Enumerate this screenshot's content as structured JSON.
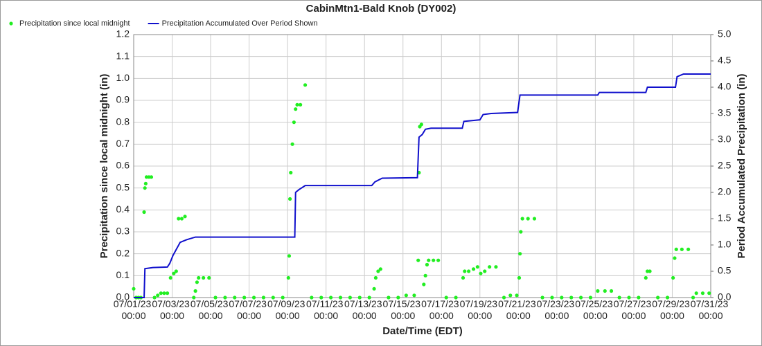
{
  "chart_data": {
    "type": "combo",
    "title": "CabinMtn1-Bald Knob (DY002)",
    "x_label": "Date/Time (EDT)",
    "y_label": "Precipitation since local midnight (in)",
    "y2_label": "Period Accumulated Precipitation (in)",
    "xlim": [
      "07/01/23 00:00",
      "07/31/23 00:00"
    ],
    "xticks": [
      "07/01/23 00:00",
      "07/03/23 00:00",
      "07/05/23 00:00",
      "07/07/23 00:00",
      "07/09/23 00:00",
      "07/11/23 00:00",
      "07/13/23 00:00",
      "07/15/23 00:00",
      "07/17/23 00:00",
      "07/19/23 00:00",
      "07/21/23 00:00",
      "07/23/23 00:00",
      "07/25/23 00:00",
      "07/27/23 00:00",
      "07/29/23 00:00",
      "07/31/23 00:00"
    ],
    "ylim": [
      0,
      1.2
    ],
    "yticks": [
      {
        "value": 0,
        "label": "0.0"
      },
      0.1,
      0.2,
      0.3,
      0.4,
      0.5,
      0.6,
      0.7,
      0.8,
      0.9,
      {
        "value": 1,
        "label": "1.0"
      },
      1.1,
      1.2
    ],
    "y2lim": [
      0,
      5
    ],
    "y2ticks": [
      {
        "value": 0,
        "label": "0.0"
      },
      0.5,
      {
        "value": 1,
        "label": "1.0"
      },
      1.5,
      {
        "value": 2,
        "label": "2.0"
      },
      2.5,
      {
        "value": 3,
        "label": "3.0"
      },
      3.5,
      {
        "value": 4,
        "label": "4.0"
      },
      4.5,
      {
        "value": 5,
        "label": "5.0"
      }
    ],
    "grid": true,
    "legend": "top-left",
    "series": [
      {
        "name": "Precipitation since local midnight",
        "type": "scatter",
        "color": "#22ee22",
        "axis": "y",
        "x": [
          "07/01/23 00:00",
          "07/01/23 03:00",
          "07/01/23 06:00",
          "07/01/23 09:00",
          "07/01/23 13:00",
          "07/01/23 14:00",
          "07/01/23 15:00",
          "07/01/23 16:00",
          "07/01/23 19:00",
          "07/01/23 22:00",
          "07/02/23 02:00",
          "07/02/23 06:00",
          "07/02/23 10:00",
          "07/02/23 14:00",
          "07/02/23 18:00",
          "07/02/23 22:00",
          "07/03/23 02:00",
          "07/03/23 05:00",
          "07/03/23 08:00",
          "07/03/23 12:00",
          "07/03/23 16:00",
          "07/04/23 03:00",
          "07/04/23 05:00",
          "07/04/23 07:00",
          "07/04/23 09:00",
          "07/04/23 15:00",
          "07/04/23 22:00",
          "07/05/23 06:00",
          "07/05/23 18:00",
          "07/06/23 06:00",
          "07/06/23 18:00",
          "07/07/23 06:00",
          "07/07/23 18:00",
          "07/08/23 06:00",
          "07/08/23 18:00",
          "07/09/23 01:00",
          "07/09/23 02:00",
          "07/09/23 03:00",
          "07/09/23 04:00",
          "07/09/23 06:00",
          "07/09/23 08:00",
          "07/09/23 10:00",
          "07/09/23 12:00",
          "07/09/23 16:00",
          "07/09/23 22:00",
          "07/10/23 06:00",
          "07/10/23 18:00",
          "07/11/23 06:00",
          "07/11/23 18:00",
          "07/12/23 06:00",
          "07/12/23 18:00",
          "07/13/23 06:00",
          "07/13/23 12:00",
          "07/13/23 14:00",
          "07/13/23 17:00",
          "07/13/23 20:00",
          "07/14/23 06:00",
          "07/14/23 18:00",
          "07/15/23 04:00",
          "07/15/23 14:00",
          "07/15/23 19:00",
          "07/15/23 20:00",
          "07/15/23 21:00",
          "07/15/23 23:00",
          "07/16/23 02:00",
          "07/16/23 04:00",
          "07/16/23 06:00",
          "07/16/23 08:00",
          "07/16/23 14:00",
          "07/16/23 20:00",
          "07/17/23 06:00",
          "07/17/23 18:00",
          "07/18/23 03:00",
          "07/18/23 05:00",
          "07/18/23 10:00",
          "07/18/23 16:00",
          "07/18/23 21:00",
          "07/19/23 01:00",
          "07/19/23 06:00",
          "07/19/23 12:00",
          "07/19/23 20:00",
          "07/20/23 06:00",
          "07/20/23 14:00",
          "07/20/23 22:00",
          "07/21/23 01:00",
          "07/21/23 02:00",
          "07/21/23 03:00",
          "07/21/23 05:00",
          "07/21/23 12:00",
          "07/21/23 20:00",
          "07/22/23 06:00",
          "07/22/23 18:00",
          "07/23/23 06:00",
          "07/23/23 18:00",
          "07/24/23 06:00",
          "07/24/23 18:00",
          "07/25/23 03:00",
          "07/25/23 12:00",
          "07/25/23 20:00",
          "07/26/23 06:00",
          "07/26/23 18:00",
          "07/27/23 06:00",
          "07/27/23 15:00",
          "07/27/23 17:00",
          "07/27/23 20:00",
          "07/28/23 06:00",
          "07/28/23 18:00",
          "07/29/23 01:00",
          "07/29/23 03:00",
          "07/29/23 05:00",
          "07/29/23 12:00",
          "07/29/23 20:00",
          "07/30/23 02:00",
          "07/30/23 06:00",
          "07/30/23 14:00",
          "07/30/23 22:00"
        ],
        "values": [
          0.04,
          0,
          0,
          0,
          0.39,
          0.5,
          0.52,
          0.55,
          0.55,
          0.55,
          0,
          0.01,
          0.02,
          0.02,
          0.02,
          0.09,
          0.11,
          0.12,
          0.36,
          0.36,
          0.37,
          0,
          0.03,
          0.07,
          0.09,
          0.09,
          0.09,
          0,
          0,
          0,
          0,
          0,
          0,
          0,
          0,
          0.09,
          0.19,
          0.45,
          0.57,
          0.7,
          0.8,
          0.86,
          0.88,
          0.88,
          0.97,
          0,
          0,
          0,
          0,
          0,
          0,
          0,
          0.04,
          0.09,
          0.12,
          0.13,
          0,
          0,
          0.01,
          0.01,
          0.17,
          0.57,
          0.78,
          0.79,
          0.06,
          0.1,
          0.15,
          0.17,
          0.17,
          0.17,
          0,
          0,
          0.09,
          0.12,
          0.12,
          0.13,
          0.14,
          0.11,
          0.12,
          0.14,
          0.14,
          0,
          0.01,
          0.01,
          0.09,
          0.2,
          0.3,
          0.36,
          0.36,
          0.36,
          0,
          0,
          0,
          0,
          0,
          0,
          0.03,
          0.03,
          0.03,
          0,
          0,
          0,
          0.09,
          0.12,
          0.12,
          0,
          0,
          0.09,
          0.18,
          0.22,
          0.22,
          0.22,
          0,
          0.02,
          0.02,
          0.02
        ]
      },
      {
        "name": "Precipitation Accumulated Over Period Shown",
        "type": "line",
        "color": "#1010cc",
        "axis": "y2",
        "x": [
          "07/01/23 00:00",
          "07/01/23 13:00",
          "07/01/23 14:00",
          "07/02/23 00:00",
          "07/02/23 18:00",
          "07/02/23 21:00",
          "07/03/23 01:00",
          "07/03/23 10:00",
          "07/03/23 18:00",
          "07/04/23 05:00",
          "07/09/23 09:00",
          "07/09/23 10:00",
          "07/09/23 14:00",
          "07/09/23 22:00",
          "07/13/23 09:00",
          "07/13/23 13:00",
          "07/13/23 22:00",
          "07/15/23 18:00",
          "07/15/23 20:00",
          "07/16/23 00:00",
          "07/16/23 04:00",
          "07/16/23 11:00",
          "07/18/23 02:00",
          "07/18/23 04:00",
          "07/19/23 00:00",
          "07/19/23 04:00",
          "07/19/23 14:00",
          "07/20/23 23:00",
          "07/21/23 02:00",
          "07/25/23 03:00",
          "07/25/23 05:00",
          "07/27/23 15:00",
          "07/27/23 17:00",
          "07/29/23 04:00",
          "07/29/23 06:00",
          "07/29/23 14:00",
          "07/31/23 00:00"
        ],
        "values": [
          0,
          0,
          0.55,
          0.57,
          0.58,
          0.65,
          0.8,
          1.05,
          1.1,
          1.15,
          1.15,
          2.0,
          2.05,
          2.13,
          2.13,
          2.2,
          2.27,
          2.28,
          3.05,
          3.1,
          3.2,
          3.22,
          3.22,
          3.35,
          3.38,
          3.48,
          3.5,
          3.52,
          3.85,
          3.85,
          3.9,
          3.9,
          4.0,
          4.0,
          4.2,
          4.25,
          4.25
        ]
      }
    ]
  }
}
